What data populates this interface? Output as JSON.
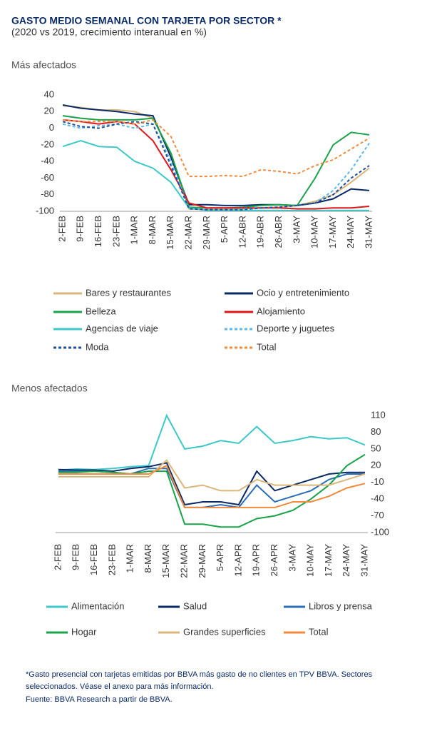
{
  "header": {
    "title": "GASTO MEDIO SEMANAL CON TARJETA POR SECTOR *",
    "subtitle": "(2020 vs 2019, crecimiento interanual en %)"
  },
  "chart_data": [
    {
      "type": "line",
      "title": "Más afectados",
      "y_axis_side": "left",
      "grid": false,
      "categories": [
        "2-FEB",
        "9-FEB",
        "16-FEB",
        "23-FEB",
        "1-MAR",
        "8-MAR",
        "15-MAR",
        "22-MAR",
        "29-MAR",
        "5-APR",
        "12-ABR",
        "19-ABR",
        "26-ABR",
        "3-MAY",
        "10-MAY",
        "17-MAY",
        "24-MAY",
        "31-MAY"
      ],
      "ylim": [
        -100,
        40
      ],
      "yticks": [
        40,
        20,
        0,
        -20,
        -40,
        -60,
        -80,
        -100
      ],
      "series": [
        {
          "name": "Bares y restaurantes",
          "color": "#d9b77a",
          "dash": false,
          "values": [
            27,
            25,
            22,
            22,
            20,
            12,
            -30,
            -97,
            -98,
            -98,
            -97,
            -96,
            -95,
            -93,
            -88,
            -80,
            -65,
            -48
          ]
        },
        {
          "name": "Ocio y entretenimiento",
          "color": "#0a2a66",
          "dash": false,
          "values": [
            28,
            24,
            22,
            20,
            17,
            15,
            -35,
            -92,
            -92,
            -93,
            -93,
            -92,
            -92,
            -93,
            -90,
            -85,
            -73,
            -75
          ]
        },
        {
          "name": "Belleza",
          "color": "#1aa34a",
          "dash": false,
          "values": [
            15,
            12,
            10,
            10,
            10,
            12,
            -30,
            -95,
            -96,
            -96,
            -95,
            -93,
            -92,
            -93,
            -60,
            -20,
            -5,
            -8
          ]
        },
        {
          "name": "Alojamiento",
          "color": "#e0161b",
          "dash": false,
          "values": [
            10,
            8,
            5,
            8,
            5,
            -15,
            -50,
            -90,
            -96,
            -96,
            -96,
            -96,
            -96,
            -97,
            -97,
            -96,
            -96,
            -94
          ]
        },
        {
          "name": "Agencias de viaje",
          "color": "#3cc8c8",
          "dash": false,
          "values": [
            -22,
            -15,
            -22,
            -23,
            -40,
            -48,
            -65,
            -96,
            -99,
            -99,
            -99,
            -99,
            -99,
            -99,
            -99,
            -99,
            -99,
            -99
          ]
        },
        {
          "name": "Deporte y juguetes",
          "color": "#5bb8e8",
          "dash": true,
          "values": [
            5,
            0,
            3,
            5,
            0,
            5,
            -40,
            -97,
            -98,
            -98,
            -97,
            -96,
            -95,
            -93,
            -90,
            -75,
            -50,
            -18
          ]
        },
        {
          "name": "Moda",
          "color": "#1f4e9a",
          "dash": true,
          "values": [
            8,
            2,
            0,
            5,
            8,
            5,
            -45,
            -97,
            -98,
            -98,
            -98,
            -96,
            -95,
            -93,
            -90,
            -80,
            -60,
            -45
          ]
        },
        {
          "name": "Total",
          "color": "#f08a3c",
          "dash": true,
          "values": [
            10,
            8,
            8,
            8,
            5,
            10,
            -10,
            -58,
            -58,
            -57,
            -58,
            -50,
            -52,
            -55,
            -45,
            -38,
            -25,
            -12
          ]
        }
      ]
    },
    {
      "type": "line",
      "title": "Menos afectados",
      "y_axis_side": "right",
      "grid": false,
      "categories": [
        "2-FEB",
        "9-FEB",
        "16-FEB",
        "23-FEB",
        "1-MAR",
        "8-MAR",
        "15-MAR",
        "22-MAR",
        "29-MAR",
        "5-APR",
        "12-APR",
        "19-APR",
        "26-APR",
        "3-MAY",
        "10-MAY",
        "17-MAY",
        "24-MAY",
        "31-MAY"
      ],
      "ylim": [
        -100,
        110
      ],
      "yticks": [
        110,
        80,
        50,
        20,
        -10,
        -40,
        -70,
        -100
      ],
      "series": [
        {
          "name": "Alimentación",
          "color": "#3cc8c8",
          "dash": false,
          "values": [
            12,
            14,
            13,
            15,
            18,
            20,
            110,
            50,
            55,
            65,
            60,
            90,
            60,
            65,
            72,
            68,
            70,
            57
          ]
        },
        {
          "name": "Salud",
          "color": "#0a2a66",
          "dash": false,
          "values": [
            13,
            12,
            12,
            10,
            15,
            18,
            25,
            -50,
            -45,
            -45,
            -50,
            10,
            -25,
            -15,
            -5,
            5,
            8,
            8
          ]
        },
        {
          "name": "Libros y prensa",
          "color": "#2c6fb6",
          "dash": false,
          "values": [
            10,
            10,
            10,
            8,
            5,
            15,
            15,
            -55,
            -55,
            -50,
            -55,
            -15,
            -45,
            -35,
            -25,
            -5,
            5,
            5
          ]
        },
        {
          "name": "Hogar",
          "color": "#1aa34a",
          "dash": false,
          "values": [
            8,
            8,
            10,
            8,
            5,
            10,
            10,
            -85,
            -85,
            -90,
            -90,
            -75,
            -70,
            -60,
            -40,
            -15,
            20,
            40
          ]
        },
        {
          "name": "Grandes superficies",
          "color": "#d9b77a",
          "dash": false,
          "values": [
            0,
            0,
            0,
            0,
            0,
            0,
            30,
            -20,
            -15,
            -25,
            -25,
            -5,
            -15,
            -15,
            -15,
            -15,
            -5,
            5
          ]
        },
        {
          "name": "Total",
          "color": "#f08a3c",
          "dash": false,
          "values": [
            5,
            5,
            5,
            5,
            5,
            5,
            20,
            -55,
            -55,
            -55,
            -55,
            -55,
            -55,
            -45,
            -45,
            -35,
            -20,
            -12
          ]
        }
      ]
    }
  ],
  "footnote": [
    "*Gasto presencial con tarjetas emitidas por BBVA más gasto de no clientes en TPV BBVA. Sectores",
    "seleccionados. Véase el anexo para más información.",
    "Fuente: BBVA Research a partir de BBVA."
  ]
}
